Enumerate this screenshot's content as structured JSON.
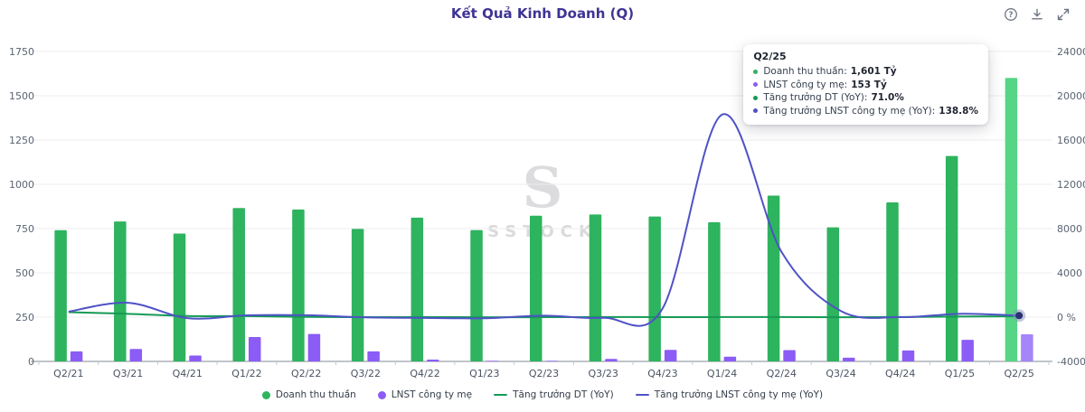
{
  "header": {
    "title": "Kết Quả Kinh Doanh (Q)"
  },
  "toolbar": {
    "icons": [
      "help-icon",
      "download-icon",
      "expand-icon"
    ]
  },
  "colors": {
    "revenue_bar": "#2eb35e",
    "revenue_bar_highlight": "#55d585",
    "profit_bar": "#8b5cf6",
    "profit_bar_highlight": "#a486f8",
    "revenue_growth_line": "#159a55",
    "profit_growth_line": "#4f52c6",
    "title": "#3e3494",
    "grid": "#ededf1",
    "baseline": "#9aa0aa",
    "axis_text": "#5a6472"
  },
  "tooltip": {
    "title": "Q2/25",
    "rows": [
      {
        "label": "Doanh thu thuần",
        "value": "1,601 Tỷ",
        "color": "#2eb35e"
      },
      {
        "label": "LNST công ty mẹ",
        "value": "153 Tỷ",
        "color": "#8b5cf6"
      },
      {
        "label": "Tăng trưởng DT (YoY)",
        "value": "71.0%",
        "color": "#159a55"
      },
      {
        "label": "Tăng trưởng LNST công ty mẹ (YoY)",
        "value": "138.8%",
        "color": "#4f52c6"
      }
    ]
  },
  "legend": [
    {
      "label": "Doanh thu thuần",
      "marker": "circle",
      "color": "#2eb35e"
    },
    {
      "label": "LNST công ty mẹ",
      "marker": "circle",
      "color": "#8b5cf6"
    },
    {
      "label": "Tăng trưởng DT (YoY)",
      "marker": "line",
      "color": "#159a55"
    },
    {
      "label": "Tăng trưởng LNST công ty mẹ (YoY)",
      "marker": "line",
      "color": "#4f52c6"
    }
  ],
  "watermark": {
    "glyph": "S",
    "text": "SSTOCK"
  },
  "chart_data": {
    "type": "bar",
    "subtype": "combo-bar-line-dual-axis",
    "title": "Kết Quả Kinh Doanh (Q)",
    "categories": [
      "Q2/21",
      "Q3/21",
      "Q4/21",
      "Q1/22",
      "Q2/22",
      "Q3/22",
      "Q4/22",
      "Q1/23",
      "Q2/23",
      "Q3/23",
      "Q4/23",
      "Q1/24",
      "Q2/24",
      "Q3/24",
      "Q4/24",
      "Q1/25",
      "Q2/25"
    ],
    "series": [
      {
        "name": "Doanh thu thuần",
        "type": "bar",
        "axis": "left",
        "unit": "Tỷ",
        "values": [
          741,
          790,
          722,
          866,
          858,
          748,
          812,
          742,
          823,
          830,
          818,
          786,
          936,
          757,
          898,
          1160,
          1601
        ]
      },
      {
        "name": "LNST công ty mẹ",
        "type": "bar",
        "axis": "left",
        "unit": "Tỷ",
        "values": [
          57,
          70,
          33,
          138,
          155,
          57,
          10,
          2,
          1,
          14,
          65,
          27,
          64,
          21,
          62,
          122,
          153
        ]
      },
      {
        "name": "Tăng trưởng DT (YoY)",
        "type": "line",
        "axis": "right",
        "unit": "%",
        "values": [
          450,
          300,
          100,
          90,
          16,
          -5,
          12,
          -14,
          -4,
          11,
          1,
          6,
          14,
          -9,
          10,
          47,
          71
        ]
      },
      {
        "name": "Tăng trưởng LNST công ty mẹ (YoY)",
        "type": "line",
        "axis": "right",
        "unit": "%",
        "values": [
          500,
          1300,
          -90,
          160,
          170,
          -20,
          -70,
          -100,
          130,
          -60,
          800,
          18300,
          5900,
          550,
          0,
          300,
          138.8
        ]
      }
    ],
    "left_axis": {
      "labels": [
        "1750",
        "1500",
        "1250",
        "1000",
        "750",
        "500",
        "250",
        "0"
      ],
      "min": 0,
      "max": 1750
    },
    "right_axis": {
      "labels": [
        "24000 %",
        "20000 %",
        "16000 %",
        "12000 %",
        "8000 %",
        "4000 %",
        "0 %",
        "-4000 %"
      ],
      "min": -4000,
      "max": 24000
    },
    "grid": true,
    "legend_position": "bottom",
    "highlighted_category": "Q2/25",
    "active_marker_series": "Tăng trưởng LNST công ty mẹ (YoY)"
  }
}
